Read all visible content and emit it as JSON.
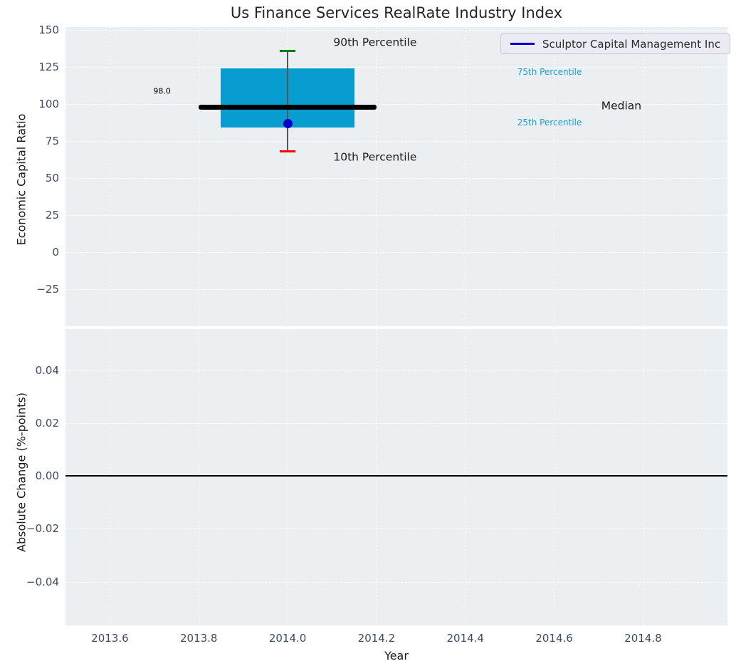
{
  "figure": {
    "title": "Us Finance Services RealRate Industry Index",
    "background": "#ffffff",
    "axes_background": "#eceff1",
    "grid_color": "#ffffff",
    "tick_color": "#3d4d66"
  },
  "legend": {
    "label": "Sculptor Capital Management Inc",
    "line_color": "#0000cc",
    "position": "upper right"
  },
  "chart_data": [
    {
      "type": "boxplot",
      "title": "Us Finance Services RealRate Industry Index",
      "xlabel": "Year",
      "ylabel": "Economic Capital Ratio",
      "xlim": [
        2013.5,
        2014.99
      ],
      "ylim": [
        -50,
        152
      ],
      "grid": true,
      "xtick_values": [
        2013.6,
        2013.8,
        2014.0,
        2014.2,
        2014.4,
        2014.6,
        2014.8
      ],
      "xtick_labels": [
        "2013.6",
        "2013.8",
        "2014.0",
        "2014.2",
        "2014.4",
        "2014.6",
        "2014.8"
      ],
      "ytick_values": [
        150,
        125,
        100,
        75,
        50,
        25,
        0,
        -25
      ],
      "ytick_labels": [
        "150",
        "125",
        "100",
        "75",
        "50",
        "25",
        "0",
        "−25"
      ],
      "box": {
        "x": 2014.0,
        "p10": 68,
        "p25": 84,
        "median": 98.0,
        "p75": 124,
        "p90": 136,
        "box_half_width": 0.15,
        "median_half_width": 0.2,
        "cap_half_width": 0.018,
        "box_color": "#089dd1",
        "median_color": "#000000",
        "whisker_color": "#555555",
        "p90_cap_color": "#008000",
        "p10_cap_color": "#ff0000"
      },
      "company_point": {
        "x": 2014.0,
        "y": 87,
        "color": "#0000cd"
      },
      "annotations": [
        {
          "text": "98.0",
          "x": 2013.737,
          "y": 108.6,
          "color": "#000000",
          "size": 11,
          "align": "right"
        },
        {
          "text": "90th Percentile",
          "x": 2014.103,
          "y": 141.3,
          "color": "#1a1a1a",
          "size": 15.5,
          "align": "left"
        },
        {
          "text": "10th Percentile",
          "x": 2014.103,
          "y": 63.8,
          "color": "#1a1a1a",
          "size": 15.5,
          "align": "left"
        },
        {
          "text": "75th Percentile",
          "x": 2014.517,
          "y": 121.6,
          "color": "#18a0d4",
          "size": 12,
          "align": "left"
        },
        {
          "text": "25th Percentile",
          "x": 2014.517,
          "y": 87.4,
          "color": "#18a0d4",
          "size": 12,
          "align": "left"
        },
        {
          "text": "Median",
          "x": 2014.706,
          "y": 98.5,
          "color": "#1a1a1a",
          "size": 15.5,
          "align": "left"
        }
      ]
    },
    {
      "type": "line",
      "xlabel": "Year",
      "ylabel": "Absolute Change (%-points)",
      "xlim": [
        2013.5,
        2014.99
      ],
      "ylim": [
        -0.0565,
        0.0555
      ],
      "grid": true,
      "xtick_values": [
        2013.6,
        2013.8,
        2014.0,
        2014.2,
        2014.4,
        2014.6,
        2014.8
      ],
      "xtick_labels": [
        "2013.6",
        "2013.8",
        "2014.0",
        "2014.2",
        "2014.4",
        "2014.6",
        "2014.8"
      ],
      "ytick_values": [
        0.04,
        0.02,
        0.0,
        -0.02,
        -0.04
      ],
      "ytick_labels": [
        "0.04",
        "0.02",
        "0.00",
        "−0.02",
        "−0.04"
      ],
      "zero_line": {
        "y": 0.0,
        "color": "#000000"
      },
      "series": []
    }
  ]
}
